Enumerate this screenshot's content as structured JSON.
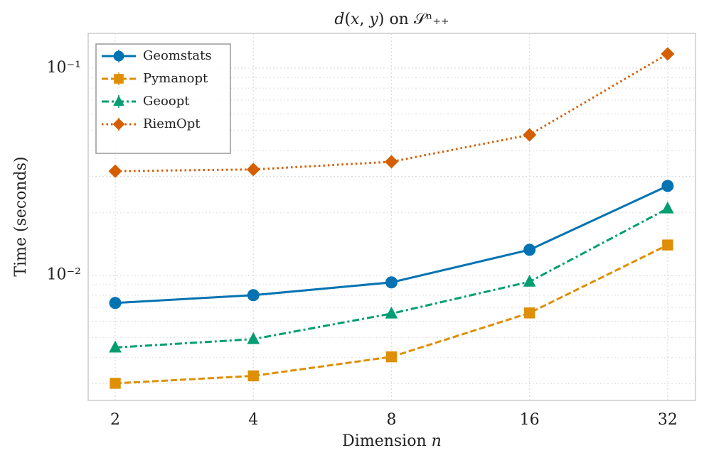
{
  "chart_data": {
    "type": "line",
    "title": "𝑑(𝑥, 𝑦) on 𝒮ⁿ₊₊",
    "x_label": "Dimension 𝑛",
    "y_label": "Time (seconds)",
    "x": [
      2,
      4,
      8,
      16,
      32
    ],
    "xlim": [
      1.746,
      36.8
    ],
    "xticks": [
      2,
      4,
      8,
      16,
      32
    ],
    "xscale": "log",
    "ylim": [
      0.00249,
      0.147
    ],
    "yticks": [
      {
        "value": 0.1,
        "label": "10⁻¹"
      },
      {
        "value": 0.01,
        "label": "10⁻²"
      }
    ],
    "yminorticks": [
      0.003,
      0.004,
      0.005,
      0.006,
      0.007,
      0.008,
      0.009,
      0.02,
      0.03,
      0.04,
      0.05,
      0.06,
      0.07,
      0.08,
      0.09
    ],
    "yscale": "log",
    "grid": true,
    "legend": "upper left",
    "series": [
      {
        "name": "Geomstats",
        "color": "#0173b2",
        "marker": "circle",
        "linestyle": "solid",
        "values": [
          0.00735,
          0.00802,
          0.00924,
          0.01327,
          0.027
        ]
      },
      {
        "name": "Pymanopt",
        "color": "#de8f05",
        "marker": "square",
        "linestyle": "dashed",
        "values": [
          0.00301,
          0.00327,
          0.00404,
          0.00658,
          0.014
        ]
      },
      {
        "name": "Geoopt",
        "color": "#029e73",
        "marker": "triangle",
        "linestyle": "dashdot",
        "values": [
          0.00448,
          0.00492,
          0.00653,
          0.00931,
          0.021
        ]
      },
      {
        "name": "RiemOpt",
        "color": "#d55e00",
        "marker": "diamond",
        "linestyle": "dotted",
        "values": [
          0.0318,
          0.0324,
          0.0353,
          0.0476,
          0.117
        ]
      }
    ]
  }
}
